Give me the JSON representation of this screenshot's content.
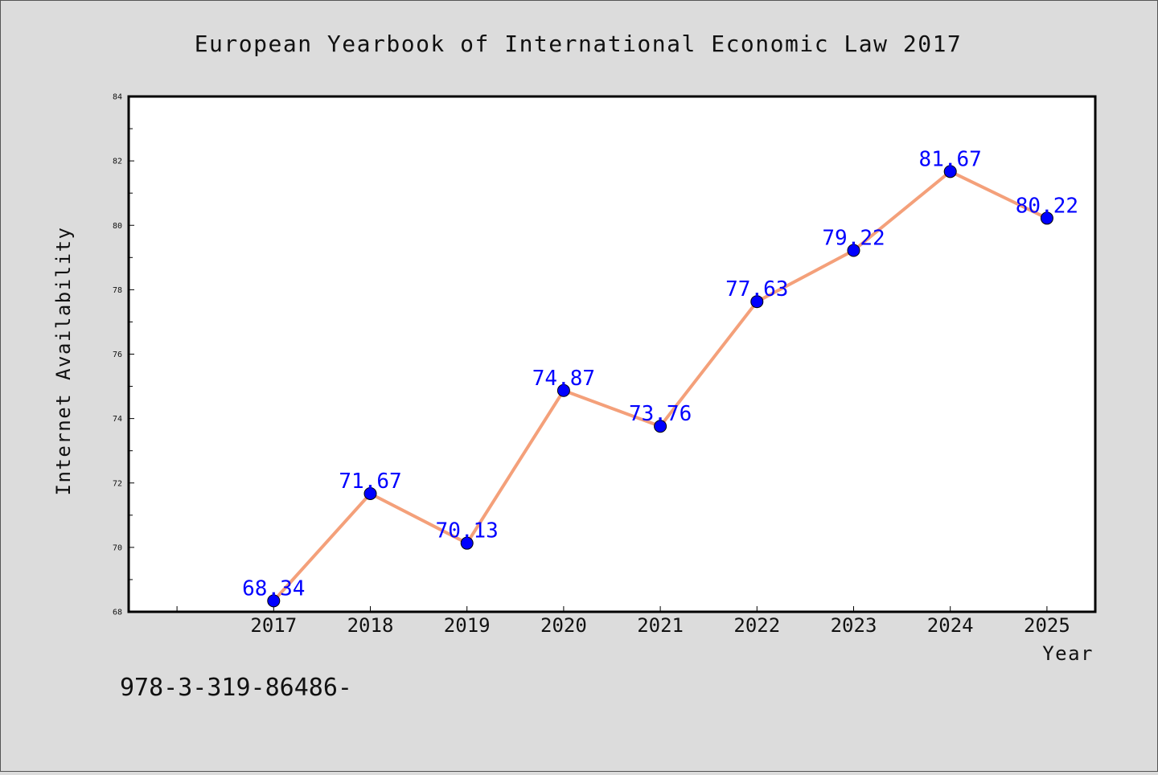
{
  "chart_data": {
    "type": "line",
    "title": "European Yearbook of International Economic Law 2017",
    "xlabel": "Year",
    "ylabel": "Internet Availability",
    "x": [
      2017,
      2018,
      2019,
      2020,
      2021,
      2022,
      2023,
      2024,
      2025
    ],
    "x_tick_labels": [
      "2017",
      "2018",
      "2019",
      "2020",
      "2021",
      "2022",
      "2023",
      "2024",
      "2025"
    ],
    "xlim": [
      2015.5,
      2025.5
    ],
    "ylim": [
      68,
      84
    ],
    "y_ticks": [
      68,
      70,
      72,
      74,
      76,
      78,
      80,
      82,
      84
    ],
    "y_tick_labels": [
      "68",
      "70",
      "72",
      "74",
      "76",
      "78",
      "80",
      "82",
      "84"
    ],
    "series": [
      {
        "values": [
          68.34,
          71.67,
          70.13,
          74.87,
          73.76,
          77.63,
          79.22,
          81.67,
          80.22
        ],
        "value_labels": [
          "68.34",
          "71.67",
          "70.13",
          "74.87",
          "73.76",
          "77.63",
          "79.22",
          "81.67",
          "80.22"
        ],
        "line_color": "#f4a07a",
        "marker_color": "#0000ff"
      }
    ],
    "grid": false,
    "legend": "none"
  },
  "footnote": "978-3-319-86486-"
}
